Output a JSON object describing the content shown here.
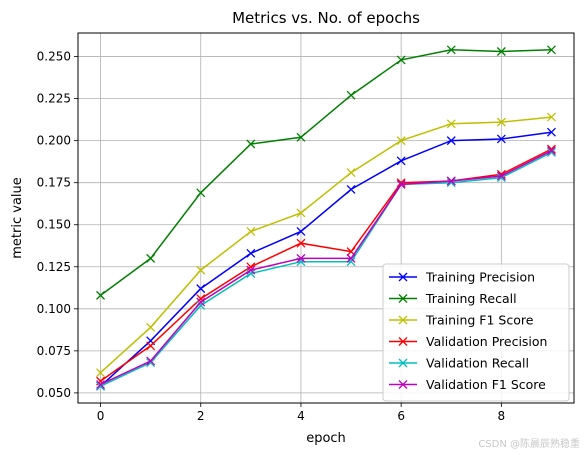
{
  "chart_data": {
    "type": "line",
    "title": "Metrics vs. No. of epochs",
    "xlabel": "epoch",
    "ylabel": "metric value",
    "x": [
      0,
      1,
      2,
      3,
      4,
      5,
      6,
      7,
      8,
      9
    ],
    "xlim": [
      -0.45,
      9.45
    ],
    "ylim": [
      0.044,
      0.264
    ],
    "xticks": [
      0,
      2,
      4,
      6,
      8
    ],
    "yticks": [
      0.05,
      0.075,
      0.1,
      0.125,
      0.15,
      0.175,
      0.2,
      0.225,
      0.25
    ],
    "ytick_labels": [
      "0.050",
      "0.075",
      "0.100",
      "0.125",
      "0.150",
      "0.175",
      "0.200",
      "0.225",
      "0.250"
    ],
    "grid": true,
    "legend_position": "lower-right",
    "marker": "x",
    "series": [
      {
        "name": "Training Precision",
        "color": "#0000ff",
        "values": [
          0.054,
          0.081,
          0.112,
          0.133,
          0.146,
          0.171,
          0.188,
          0.2,
          0.201,
          0.205
        ]
      },
      {
        "name": "Training Recall",
        "color": "#008000",
        "values": [
          0.108,
          0.13,
          0.169,
          0.198,
          0.202,
          0.227,
          0.248,
          0.254,
          0.253,
          0.254
        ]
      },
      {
        "name": "Training F1 Score",
        "color": "#bfbf00",
        "values": [
          0.062,
          0.089,
          0.123,
          0.146,
          0.157,
          0.181,
          0.2,
          0.21,
          0.211,
          0.214
        ]
      },
      {
        "name": "Validation Precision",
        "color": "#ff0000",
        "values": [
          0.057,
          0.078,
          0.106,
          0.125,
          0.139,
          0.134,
          0.175,
          0.176,
          0.18,
          0.195
        ]
      },
      {
        "name": "Validation Recall",
        "color": "#00bfbf",
        "values": [
          0.054,
          0.068,
          0.102,
          0.121,
          0.128,
          0.128,
          0.174,
          0.175,
          0.178,
          0.193
        ]
      },
      {
        "name": "Validation F1 Score",
        "color": "#bf00bf",
        "values": [
          0.055,
          0.069,
          0.104,
          0.123,
          0.13,
          0.13,
          0.174,
          0.176,
          0.179,
          0.194
        ]
      }
    ]
  },
  "watermark": "CSDN @陈晨辰熟稳重"
}
